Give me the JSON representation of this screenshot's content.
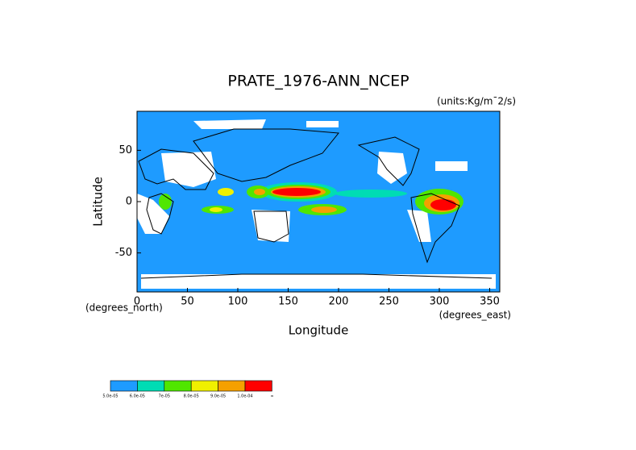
{
  "chart_data": {
    "type": "map",
    "title": "PRATE_1976-ANN_NCEP",
    "subtitle": "(units:Kg/m¯2/s)",
    "x_label": "Longitude",
    "y_label": "Latitude",
    "x_unit": "(degrees_east)",
    "y_unit": "(degrees_north)",
    "xlim": [
      0,
      360
    ],
    "xticks": [
      0,
      50,
      100,
      150,
      200,
      250,
      300,
      350
    ],
    "ylim": [
      -88,
      88
    ],
    "yticks": [
      -50,
      0,
      50
    ],
    "background_color": "#1e9bff",
    "legend": {
      "colors": [
        "#1e9bff",
        "#00dcb4",
        "#50e600",
        "#f0f000",
        "#f5a000",
        "#ff0000"
      ],
      "labels": [
        "5.0e-05",
        "6.0e-05",
        "7e-05",
        "8.0e-05",
        "9.0e-05",
        "1.0e-04",
        "∞"
      ]
    }
  }
}
